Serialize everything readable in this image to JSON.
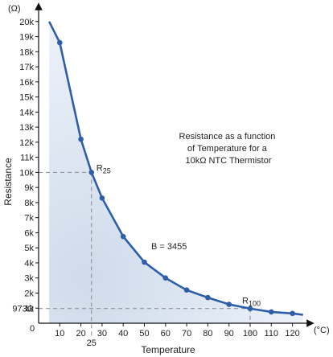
{
  "chart_data": {
    "type": "line",
    "title": "",
    "annotation_lines": [
      "Resistance as a function",
      "of Temperature for a",
      "10kΩ NTC Thermistor"
    ],
    "xlabel": "Temperature",
    "ylabel": "Resistance",
    "x_unit": "(°C)",
    "y_unit": "(Ω)",
    "xlim": [
      0,
      125
    ],
    "ylim": [
      0,
      20000
    ],
    "x_ticks": [
      10,
      20,
      30,
      40,
      50,
      60,
      70,
      80,
      90,
      100,
      110,
      120
    ],
    "x_tick_labels": [
      "10",
      "20",
      "30",
      "40",
      "50",
      "60",
      "70",
      "80",
      "90",
      "100",
      "110",
      "120"
    ],
    "y_ticks": [
      1000,
      2000,
      3000,
      4000,
      5000,
      6000,
      7000,
      8000,
      9000,
      10000,
      11000,
      12000,
      13000,
      14000,
      15000,
      16000,
      17000,
      18000,
      19000,
      20000
    ],
    "y_tick_labels": [
      "1k",
      "2k",
      "3k",
      "4k",
      "5k",
      "6k",
      "7k",
      "8k",
      "9k",
      "10k",
      "11k",
      "12k",
      "13k",
      "14k",
      "15k",
      "16k",
      "17k",
      "18k",
      "19k",
      "20k"
    ],
    "origin_label": "0",
    "grid": false,
    "color": "#2f5ea8",
    "series": [
      {
        "x": [
          5,
          10,
          20,
          25,
          30,
          40,
          50,
          60,
          70,
          80,
          90,
          100,
          110,
          120,
          125
        ],
        "y": [
          20000,
          18600,
          12200,
          10000,
          8300,
          5750,
          4050,
          3000,
          2200,
          1700,
          1250,
          973,
          750,
          650,
          560
        ],
        "markers": [
          false,
          true,
          true,
          true,
          true,
          true,
          true,
          true,
          true,
          true,
          true,
          true,
          true,
          true,
          false
        ]
      }
    ],
    "reference_points": [
      {
        "label": "R",
        "subscript": "25",
        "x": 25,
        "y": 10000,
        "x_label": "25",
        "y_label": "10k"
      },
      {
        "label": "R",
        "subscript": "100",
        "x": 100,
        "y": 973,
        "x_label": "100",
        "y_label": "973Ω"
      }
    ],
    "b_label": "B = 3455"
  }
}
